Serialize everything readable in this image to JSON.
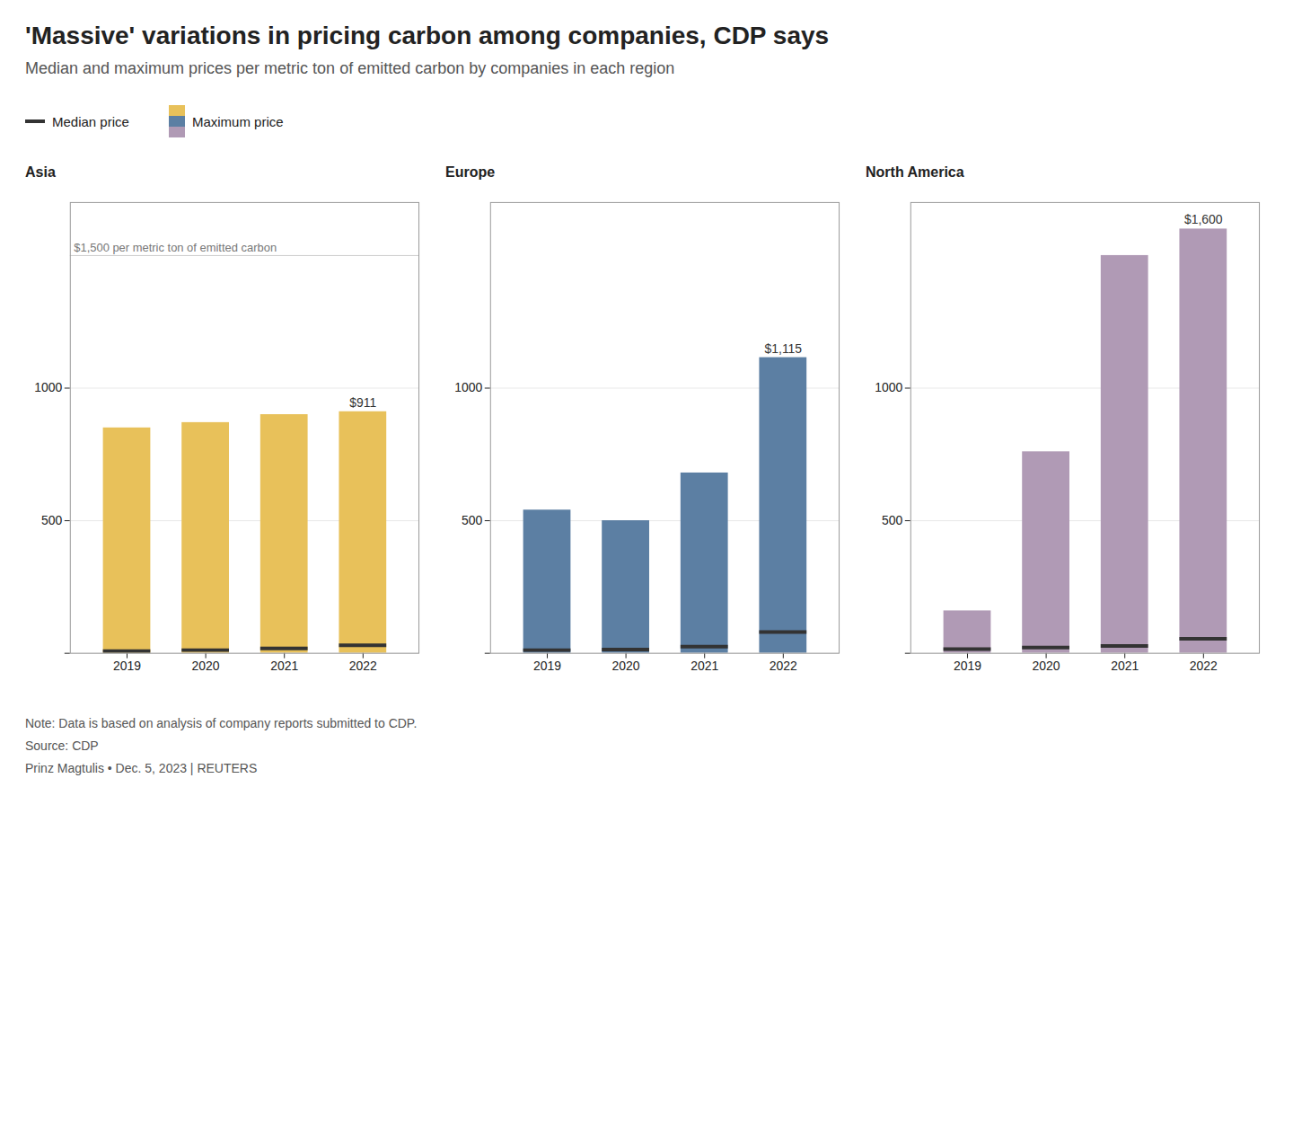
{
  "title": "'Massive' variations in pricing carbon among companies, CDP says",
  "subtitle": "Median and maximum prices per metric ton of emitted carbon by companies in each region",
  "note": "Note: Data is based on analysis of company reports submitted to CDP.",
  "source": "Source: CDP",
  "author": "Prinz Magtulis • Dec. 5, 2023 | REUTERS",
  "chart_data": [
    {
      "type": "bar",
      "title": "Asia",
      "categories": [
        2019,
        2020,
        2021,
        2022
      ],
      "series": [
        {
          "name": "Maximum price",
          "color": "#E8C15A",
          "values": [
            850,
            870,
            900,
            911
          ],
          "value_labels": [
            null,
            null,
            null,
            "$911"
          ]
        },
        {
          "name": "Median price",
          "type": "tick",
          "color": "#333333",
          "values": [
            8,
            12,
            18,
            30
          ]
        }
      ],
      "ylim": [
        0,
        1700
      ],
      "yticks": [
        {
          "value": 0,
          "label": null
        },
        500,
        1000
      ],
      "grid": true,
      "legend": "top",
      "annotations": [
        {
          "text": "$1,500 per metric ton of emitted carbon",
          "y": 1500
        }
      ]
    },
    {
      "type": "bar",
      "title": "Europe",
      "categories": [
        2019,
        2020,
        2021,
        2022
      ],
      "series": [
        {
          "name": "Maximum price",
          "color": "#5C7FA3",
          "values": [
            540,
            500,
            680,
            1115
          ],
          "value_labels": [
            null,
            null,
            null,
            "$1,115"
          ]
        },
        {
          "name": "Median price",
          "type": "tick",
          "color": "#333333",
          "values": [
            12,
            14,
            25,
            80
          ]
        }
      ],
      "ylim": [
        0,
        1700
      ],
      "yticks": [
        {
          "value": 0,
          "label": null
        },
        500,
        1000
      ],
      "grid": true
    },
    {
      "type": "bar",
      "title": "North America",
      "categories": [
        2019,
        2020,
        2021,
        2022
      ],
      "series": [
        {
          "name": "Maximum price",
          "color": "#B09AB5",
          "values": [
            160,
            760,
            1500,
            1600
          ],
          "value_labels": [
            null,
            null,
            null,
            "$1,600"
          ]
        },
        {
          "name": "Median price",
          "type": "tick",
          "color": "#333333",
          "values": [
            16,
            22,
            28,
            55
          ]
        }
      ],
      "ylim": [
        0,
        1700
      ],
      "yticks": [
        {
          "value": 0,
          "label": null
        },
        500,
        1000
      ],
      "grid": true
    }
  ]
}
